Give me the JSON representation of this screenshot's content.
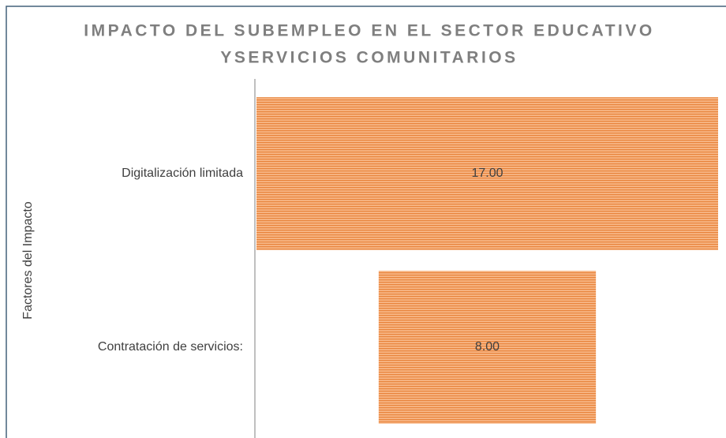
{
  "chart_data": {
    "type": "funnel",
    "title": [
      "IMPACTO DEL SUBEMPLEO EN EL SECTOR EDUCATIVO",
      "YSERVICIOS COMUNITARIOS"
    ],
    "y_axis_label": "Factores del Impacto",
    "categories": [
      "Digitalización limitada",
      "Contratación de servicios:"
    ],
    "values": [
      17,
      8
    ],
    "value_labels": [
      "17.00",
      "8.00"
    ],
    "color": "#f4a064"
  }
}
